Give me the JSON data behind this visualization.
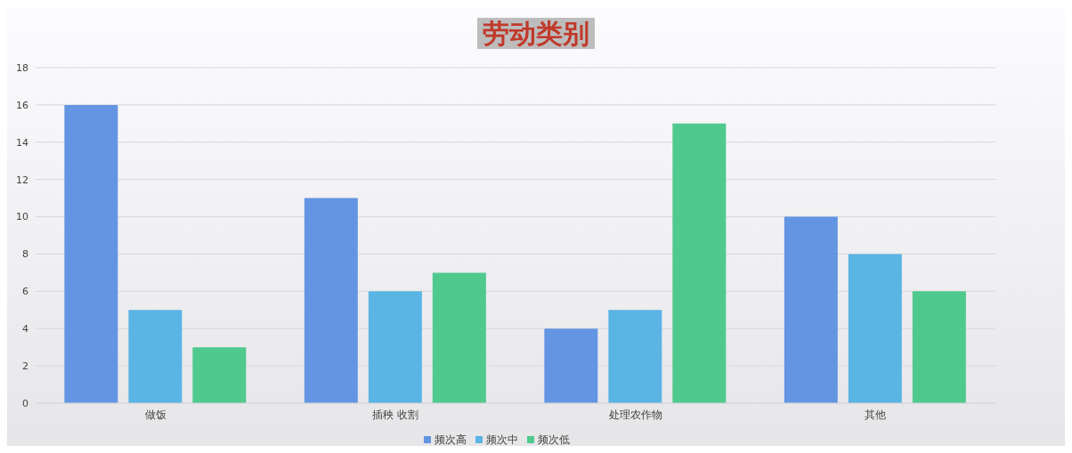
{
  "chart_data": {
    "type": "bar",
    "title": "劳动类别",
    "categories": [
      "做饭",
      "插秧 收割",
      "处理农作物",
      "其他"
    ],
    "series": [
      {
        "name": "频次高",
        "color": "#6495e3",
        "values": [
          16,
          11,
          4,
          10
        ]
      },
      {
        "name": "频次中",
        "color": "#5ab4e4",
        "values": [
          5,
          6,
          5,
          8
        ]
      },
      {
        "name": "频次低",
        "color": "#4fc98e",
        "values": [
          3,
          7,
          15,
          6
        ]
      }
    ],
    "ylim": [
      0,
      18
    ],
    "yticks": [
      0,
      2,
      4,
      6,
      8,
      10,
      12,
      14,
      16,
      18
    ],
    "grid": "y",
    "legend": "bottom"
  }
}
